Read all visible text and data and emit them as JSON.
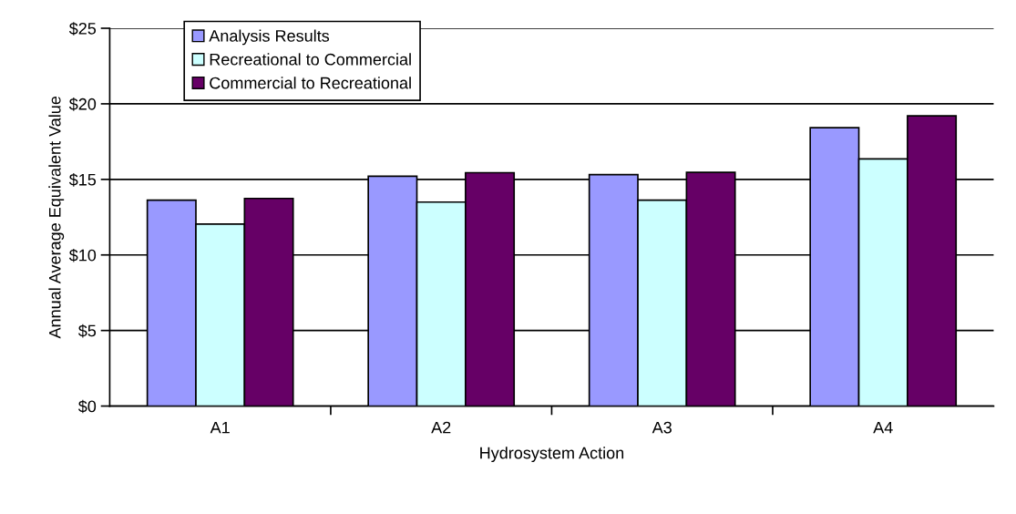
{
  "chart_data": {
    "type": "bar",
    "xlabel": "Hydrosystem Action",
    "ylabel": "Annual Average Equivalent Value",
    "categories": [
      "A1",
      "A2",
      "A3",
      "A4"
    ],
    "series": [
      {
        "name": "Analysis Results",
        "color": "#9999ff",
        "values": [
          13.63,
          15.21,
          15.31,
          18.42
        ]
      },
      {
        "name": "Recreational to Commercial",
        "color": "#ccffff",
        "values": [
          12.04,
          13.5,
          13.63,
          16.35
        ]
      },
      {
        "name": "Commercial to Recreational",
        "color": "#660066",
        "values": [
          13.74,
          15.44,
          15.47,
          19.2
        ]
      }
    ],
    "ylim": [
      0,
      25
    ],
    "yticks": [
      {
        "value": 0,
        "label": "$0"
      },
      {
        "value": 5,
        "label": "$5"
      },
      {
        "value": 10,
        "label": "$10"
      },
      {
        "value": 15,
        "label": "$15"
      },
      {
        "value": 20,
        "label": "$20"
      },
      {
        "value": 25,
        "label": "$25"
      }
    ],
    "grid": "y",
    "legend": "top left"
  }
}
